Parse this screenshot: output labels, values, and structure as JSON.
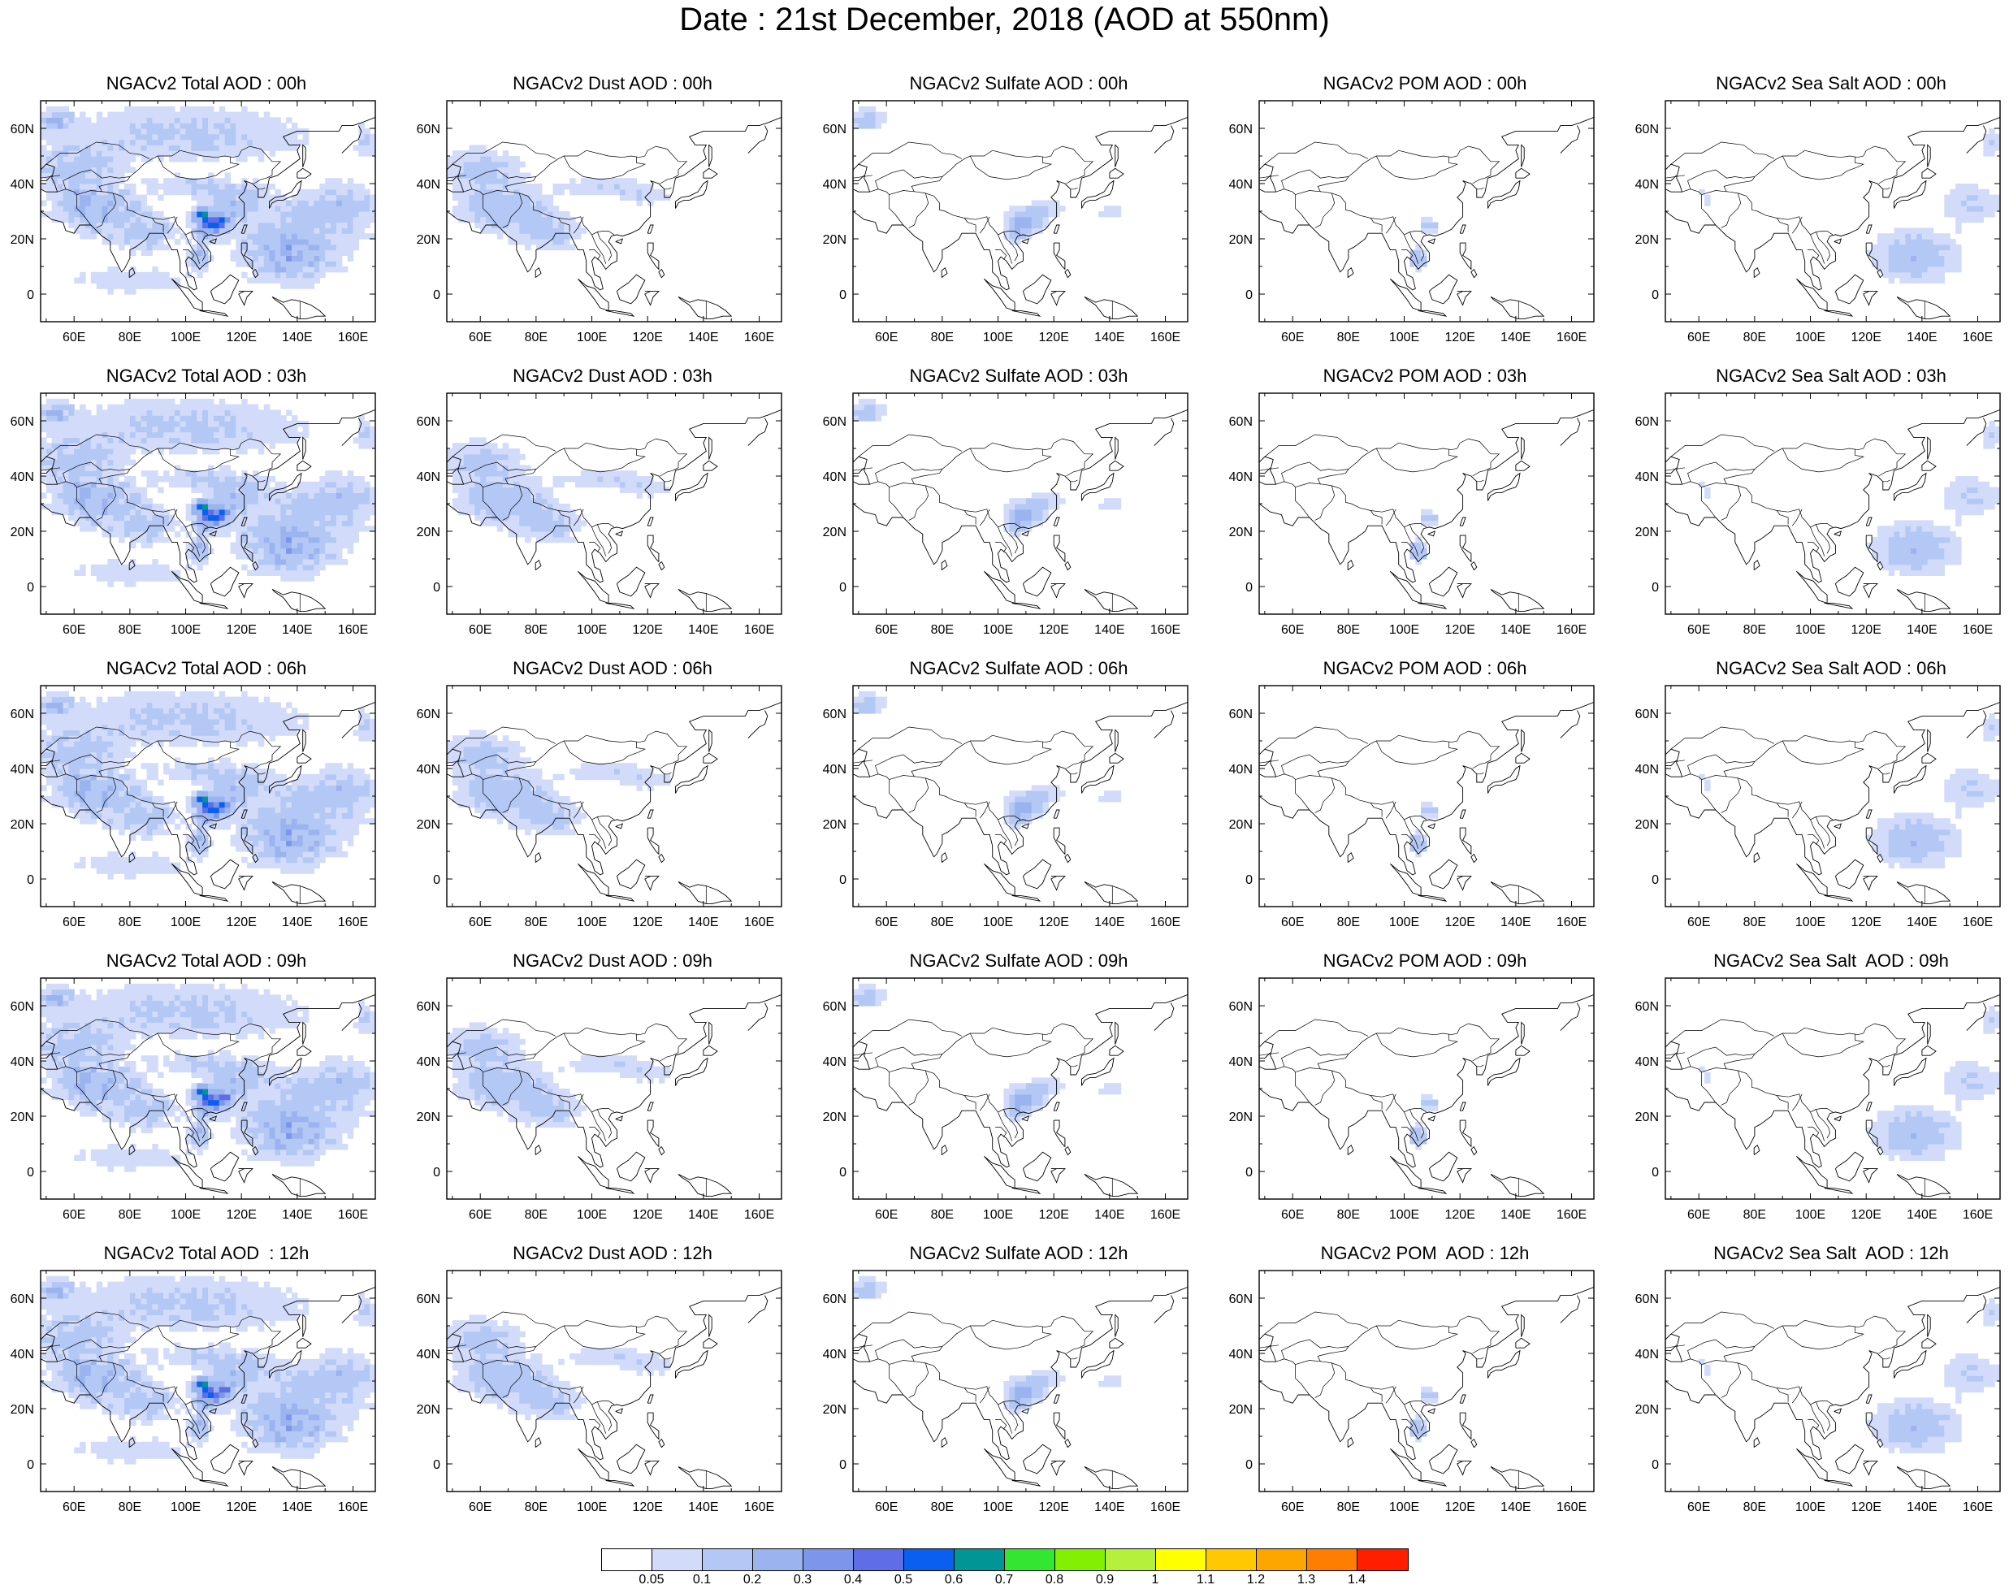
{
  "title": "Date : 21st December, 2018 (AOD at 550nm)",
  "maps": {
    "lon_ticks": [
      "60E",
      "80E",
      "100E",
      "120E",
      "140E",
      "160E"
    ],
    "lat_ticks": [
      "60N",
      "40N",
      "20N",
      "0"
    ],
    "lon_range": [
      48,
      168
    ],
    "lat_range": [
      -10,
      70
    ],
    "rows": [
      {
        "time": "00h",
        "panels": [
          {
            "title": "NGACv2 Total AOD : 00h",
            "field": "total"
          },
          {
            "title": "NGACv2 Dust AOD : 00h",
            "field": "dust"
          },
          {
            "title": "NGACv2 Sulfate AOD : 00h",
            "field": "sulfate"
          },
          {
            "title": "NGACv2 POM AOD : 00h",
            "field": "pom"
          },
          {
            "title": "NGACv2 Sea Salt AOD : 00h",
            "field": "seasalt"
          }
        ]
      },
      {
        "time": "03h",
        "panels": [
          {
            "title": "NGACv2 Total AOD : 03h",
            "field": "total"
          },
          {
            "title": "NGACv2 Dust AOD : 03h",
            "field": "dust"
          },
          {
            "title": "NGACv2 Sulfate AOD : 03h",
            "field": "sulfate"
          },
          {
            "title": "NGACv2 POM AOD : 03h",
            "field": "pom"
          },
          {
            "title": "NGACv2 Sea Salt AOD : 03h",
            "field": "seasalt"
          }
        ]
      },
      {
        "time": "06h",
        "panels": [
          {
            "title": "NGACv2 Total AOD : 06h",
            "field": "total"
          },
          {
            "title": "NGACv2 Dust AOD : 06h",
            "field": "dust"
          },
          {
            "title": "NGACv2 Sulfate AOD : 06h",
            "field": "sulfate"
          },
          {
            "title": "NGACv2 POM AOD : 06h",
            "field": "pom"
          },
          {
            "title": "NGACv2 Sea Salt AOD : 06h",
            "field": "seasalt"
          }
        ]
      },
      {
        "time": "09h",
        "panels": [
          {
            "title": "NGACv2 Total AOD : 09h",
            "field": "total"
          },
          {
            "title": "NGACv2 Dust AOD : 09h",
            "field": "dust"
          },
          {
            "title": "NGACv2 Sulfate AOD : 09h",
            "field": "sulfate"
          },
          {
            "title": "NGACv2 POM AOD : 09h",
            "field": "pom"
          },
          {
            "title": "NGACv2 Sea Salt  AOD : 09h",
            "field": "seasalt"
          }
        ]
      },
      {
        "time": "12h",
        "panels": [
          {
            "title": "NGACv2 Total AOD  : 12h",
            "field": "total"
          },
          {
            "title": "NGACv2 Dust AOD : 12h",
            "field": "dust"
          },
          {
            "title": "NGACv2 Sulfate AOD : 12h",
            "field": "sulfate"
          },
          {
            "title": "NGACv2 POM  AOD : 12h",
            "field": "pom"
          },
          {
            "title": "NGACv2 Sea Salt  AOD : 12h",
            "field": "seasalt"
          }
        ]
      }
    ]
  },
  "colorbar": {
    "colors": [
      "#ffffff",
      "#d2dcfa",
      "#b4c8f5",
      "#9bb4f0",
      "#7d96eb",
      "#5f6ee6",
      "#0a5ff0",
      "#009696",
      "#32e632",
      "#82f000",
      "#b4f03c",
      "#ffff00",
      "#ffc800",
      "#ffa500",
      "#ff7d00",
      "#ff1e00"
    ],
    "labels": [
      "0.05",
      "0.1",
      "0.2",
      "0.3",
      "0.4",
      "0.5",
      "0.6",
      "0.7",
      "0.8",
      "0.9",
      "1",
      "1.1",
      "1.2",
      "1.3",
      "1.4"
    ]
  }
}
